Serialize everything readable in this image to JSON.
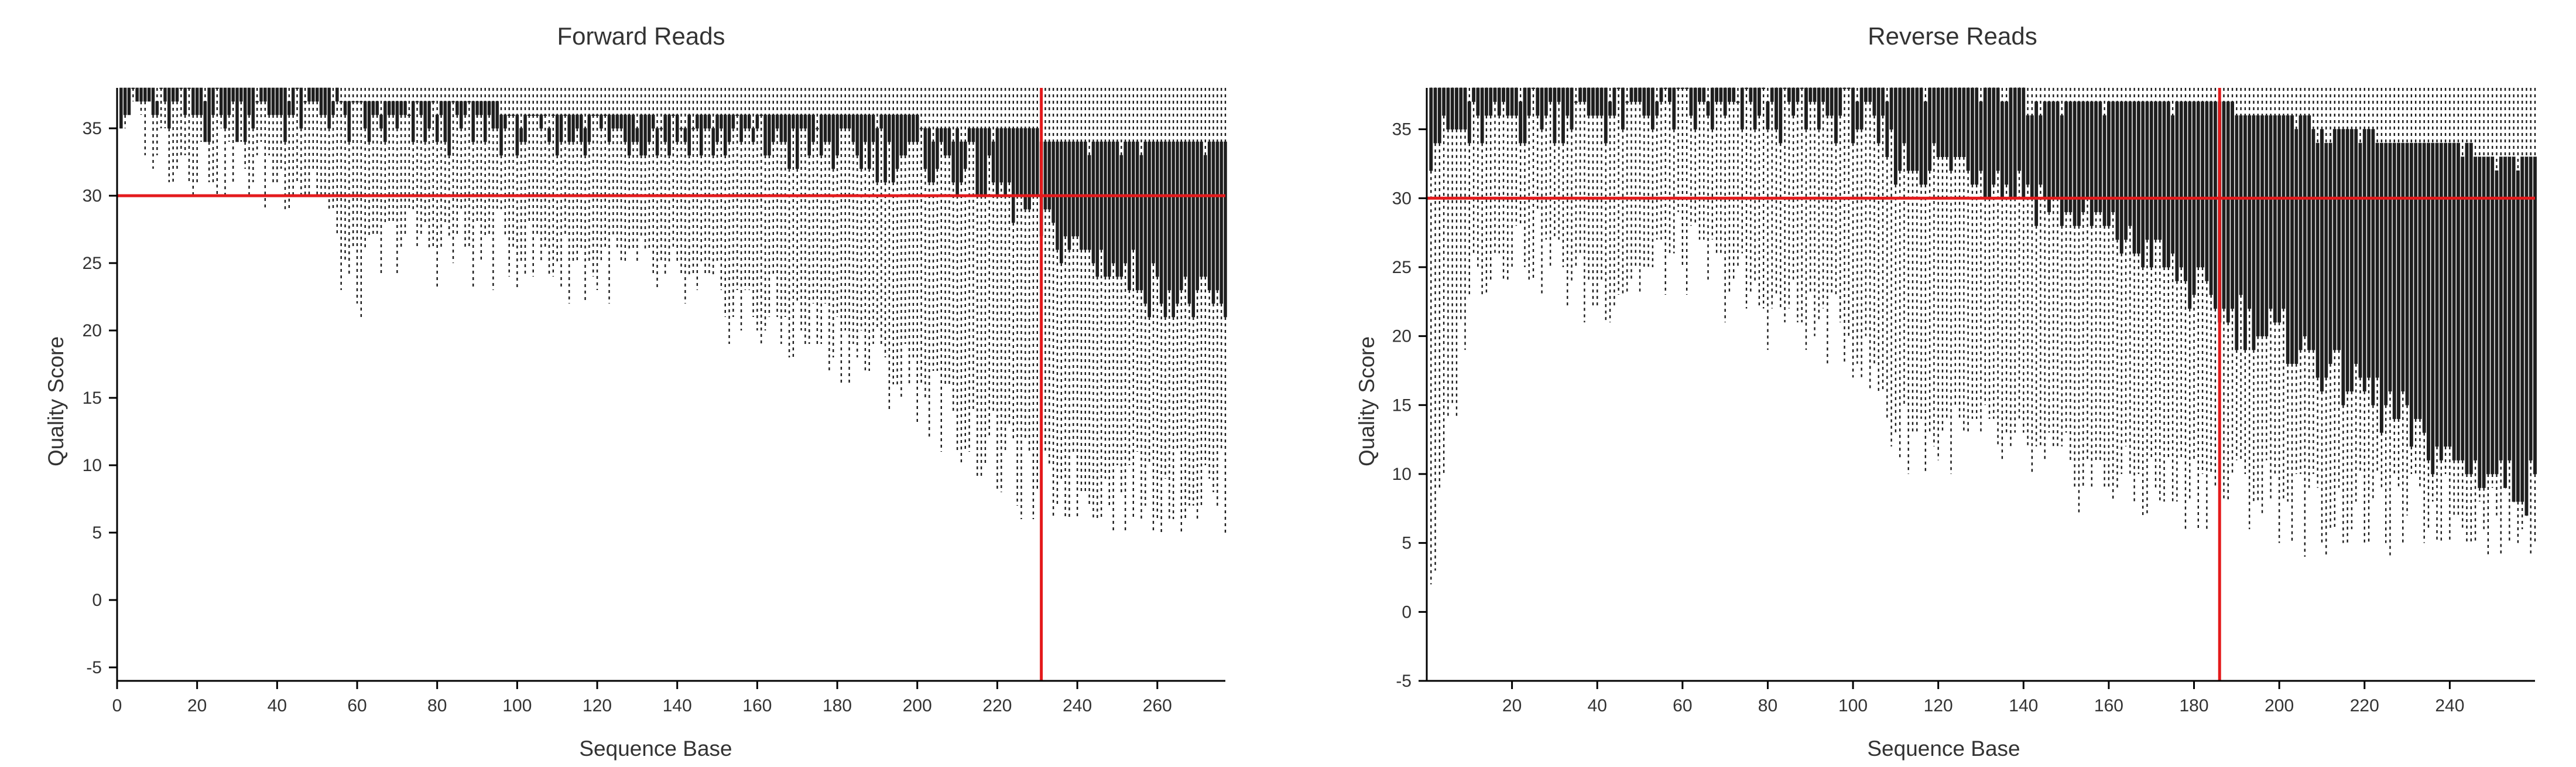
{
  "colors": {
    "box": "#1e1e1e",
    "whisker": "#1a1a1a",
    "threshold": "#e41a1c",
    "axis": "#000000",
    "text": "#333333"
  },
  "chart_data": [
    {
      "type": "box",
      "title": "Forward Reads",
      "xlabel": "Sequence Base",
      "ylabel": "Quality Score",
      "xlim": [
        0,
        277
      ],
      "ylim": [
        -6,
        38
      ],
      "xticks": [
        0,
        20,
        40,
        60,
        80,
        100,
        120,
        140,
        160,
        180,
        200,
        220,
        240,
        260
      ],
      "yticks": [
        -5,
        0,
        5,
        10,
        15,
        20,
        25,
        30,
        35
      ],
      "grid": false,
      "horizontal_line": 30,
      "vertical_line": 231,
      "boxes": {
        "positions": [
          1,
          277
        ],
        "upper_whisker": 38,
        "q3_nodes": [
          [
            1,
            38
          ],
          [
            55,
            38
          ],
          [
            56,
            37
          ],
          [
            95,
            37
          ],
          [
            96,
            36
          ],
          [
            200,
            36
          ],
          [
            201,
            35
          ],
          [
            230,
            35
          ],
          [
            231,
            34
          ],
          [
            277,
            34
          ]
        ],
        "q1_nodes": [
          [
            1,
            37
          ],
          [
            10,
            36
          ],
          [
            55,
            36
          ],
          [
            56,
            35
          ],
          [
            90,
            35
          ],
          [
            91,
            35
          ],
          [
            120,
            35
          ],
          [
            160,
            34
          ],
          [
            200,
            33
          ],
          [
            212,
            32
          ],
          [
            222,
            30
          ],
          [
            230,
            28
          ],
          [
            240,
            26
          ],
          [
            260,
            23
          ],
          [
            277,
            22
          ]
        ],
        "lower_whisker_nodes": [
          [
            1,
            37
          ],
          [
            10,
            34
          ],
          [
            30,
            32
          ],
          [
            50,
            31
          ],
          [
            56,
            25
          ],
          [
            60,
            23
          ],
          [
            70,
            27
          ],
          [
            80,
            26
          ],
          [
            95,
            26
          ],
          [
            110,
            25
          ],
          [
            130,
            24
          ],
          [
            160,
            21
          ],
          [
            180,
            19
          ],
          [
            200,
            16
          ],
          [
            212,
            12
          ],
          [
            222,
            10
          ],
          [
            230,
            8
          ],
          [
            277,
            8
          ]
        ]
      }
    },
    {
      "type": "box",
      "title": "Reverse Reads",
      "xlabel": "Sequence Base",
      "ylabel": "Quality Score",
      "xlim": [
        0,
        260
      ],
      "ylim": [
        -5,
        38
      ],
      "xticks": [
        20,
        40,
        60,
        80,
        100,
        120,
        140,
        160,
        180,
        200,
        220,
        240
      ],
      "yticks": [
        -5,
        0,
        5,
        10,
        15,
        20,
        25,
        30,
        35
      ],
      "grid": false,
      "horizontal_line": 30,
      "vertical_line": 186,
      "boxes": {
        "positions": [
          1,
          260
        ],
        "upper_whisker": 38,
        "q3_nodes": [
          [
            1,
            38
          ],
          [
            100,
            38
          ],
          [
            101,
            38
          ],
          [
            140,
            38
          ],
          [
            141,
            37
          ],
          [
            180,
            37
          ],
          [
            200,
            36
          ],
          [
            230,
            34
          ],
          [
            260,
            33
          ]
        ],
        "q1_nodes": [
          [
            1,
            34
          ],
          [
            20,
            36
          ],
          [
            60,
            36
          ],
          [
            100,
            36
          ],
          [
            110,
            33
          ],
          [
            130,
            32
          ],
          [
            150,
            29
          ],
          [
            170,
            26
          ],
          [
            186,
            22
          ],
          [
            200,
            20
          ],
          [
            220,
            16
          ],
          [
            240,
            11
          ],
          [
            260,
            9
          ]
        ],
        "lower_whisker_nodes": [
          [
            1,
            2
          ],
          [
            10,
            24
          ],
          [
            20,
            27
          ],
          [
            40,
            23
          ],
          [
            60,
            26
          ],
          [
            80,
            22
          ],
          [
            100,
            20
          ],
          [
            110,
            13
          ],
          [
            130,
            12
          ],
          [
            150,
            10
          ],
          [
            170,
            9
          ],
          [
            190,
            9
          ],
          [
            200,
            8
          ],
          [
            210,
            7
          ],
          [
            260,
            7
          ]
        ]
      }
    }
  ]
}
